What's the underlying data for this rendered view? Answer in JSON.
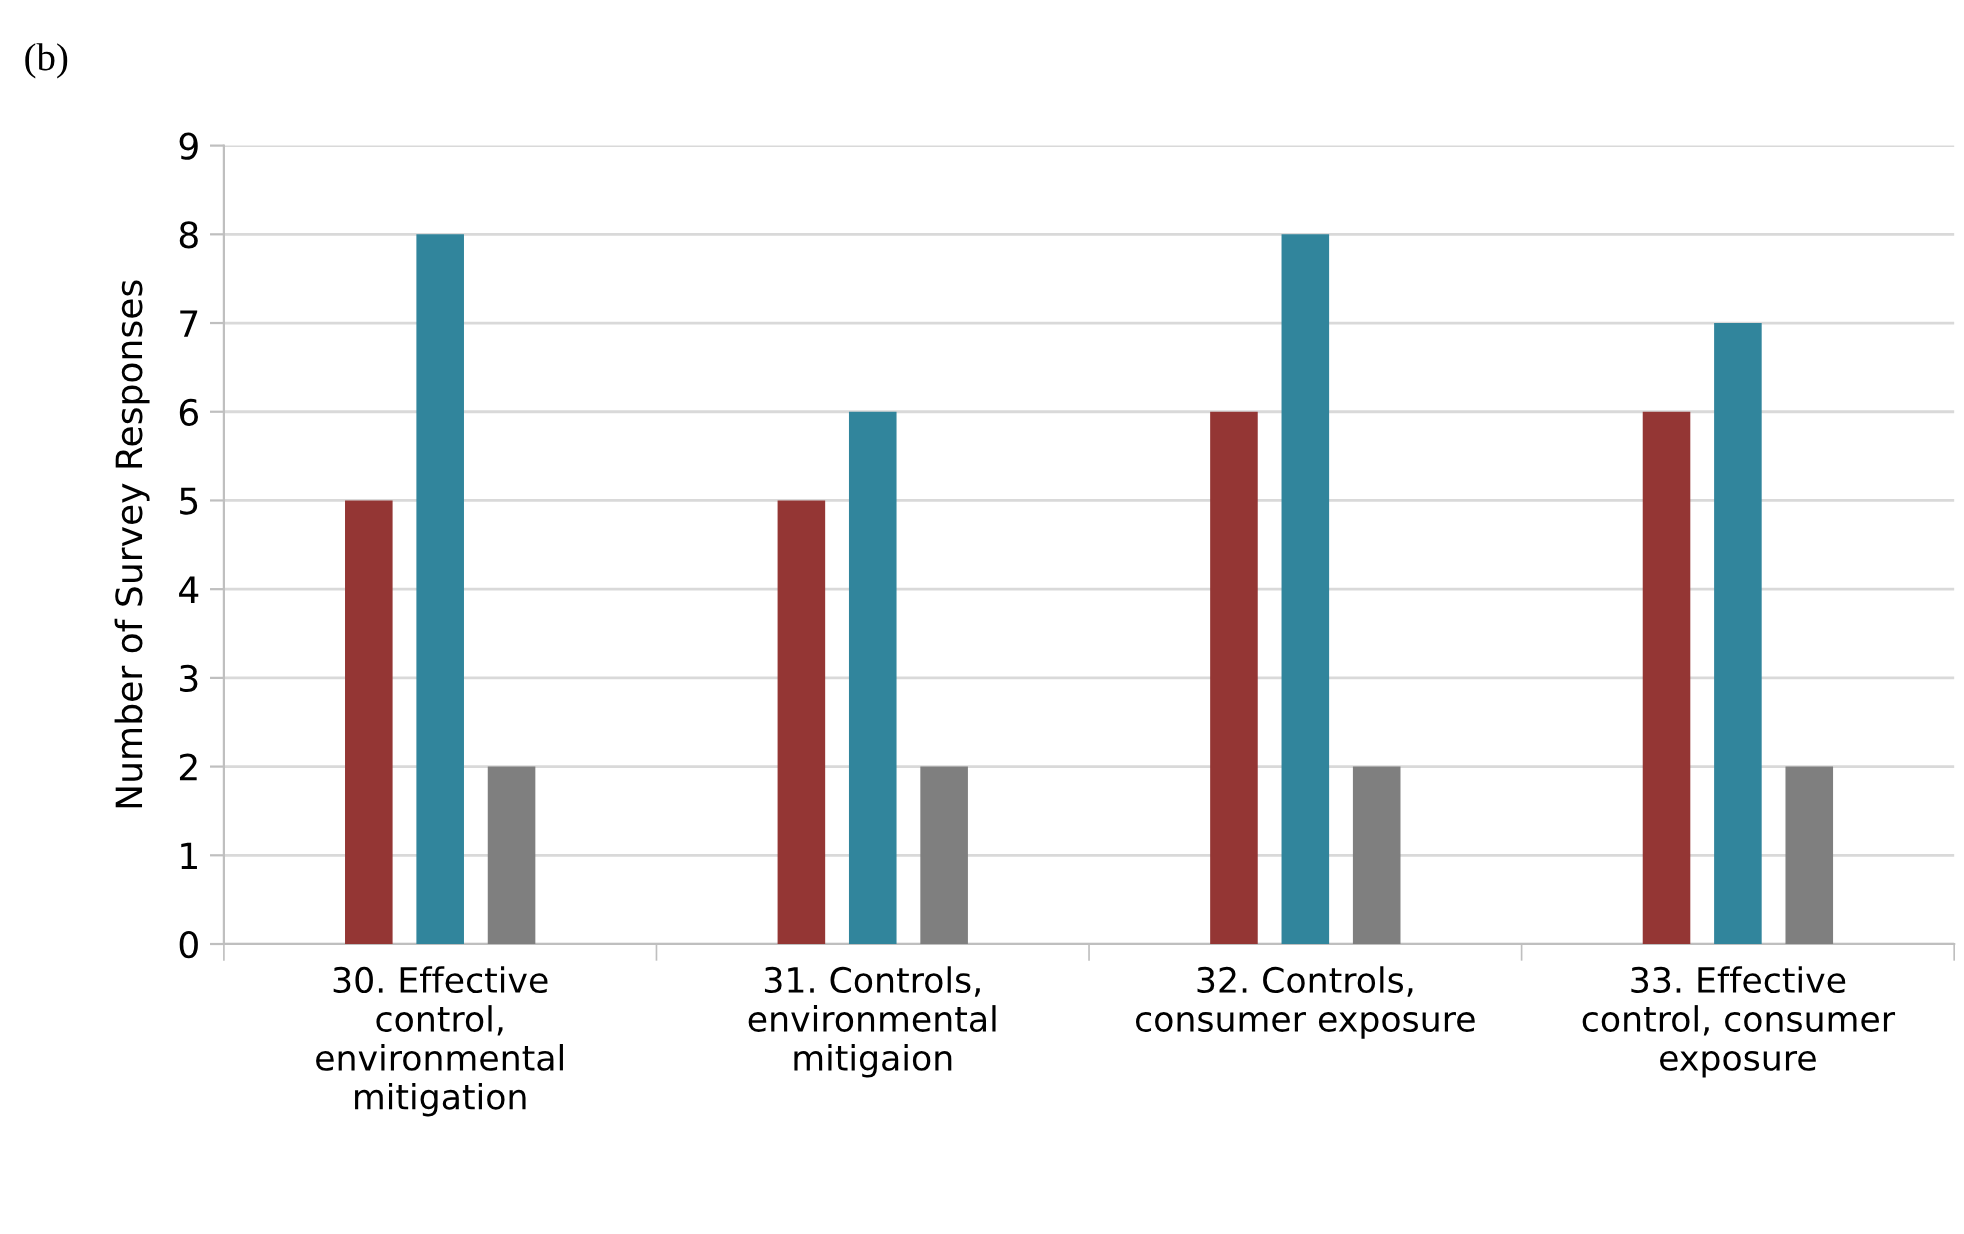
{
  "chart_data": {
    "type": "bar",
    "annotations": [
      "(b)"
    ],
    "ylabel": "Number of Survey Responses",
    "categories": [
      "30. Effective\ncontrol,\nenvironmental\nmitigation",
      "31. Controls,\nenvironmental\nmitigaion",
      "32. Controls,\nconsumer exposure",
      "33. Effective\ncontrol, consumer\nexposure"
    ],
    "series": [
      {
        "color": "#943634",
        "values": [
          5,
          5,
          6,
          6
        ]
      },
      {
        "color": "#31859c",
        "values": [
          8,
          6,
          8,
          7
        ]
      },
      {
        "color": "#7f7f7f",
        "values": [
          2,
          2,
          2,
          2
        ]
      }
    ],
    "ylim": [
      0,
      9
    ],
    "yticks": [
      0,
      1,
      2,
      3,
      4,
      5,
      6,
      7,
      8,
      9
    ],
    "grid": "y",
    "legend": false
  }
}
